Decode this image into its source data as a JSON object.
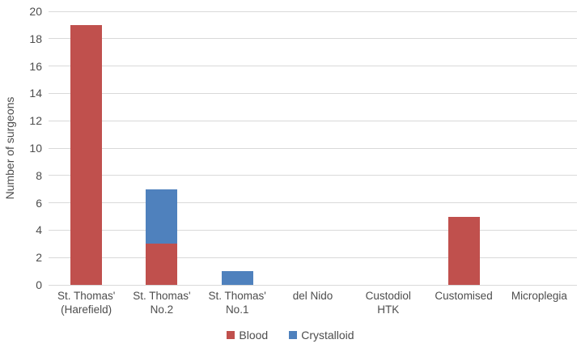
{
  "chart_data": {
    "type": "bar",
    "stacked": true,
    "title": "",
    "xlabel": "",
    "ylabel": "Number of surgeons",
    "ylim": [
      0,
      20
    ],
    "yticks": [
      0,
      2,
      4,
      6,
      8,
      10,
      12,
      14,
      16,
      18,
      20
    ],
    "grid": true,
    "legend_position": "bottom",
    "categories": [
      "St. Thomas' (Harefield)",
      "St. Thomas' No.2",
      "St. Thomas' No.1",
      "del Nido",
      "Custodiol HTK",
      "Customised",
      "Microplegia"
    ],
    "category_label_lines": [
      "St. Thomas'\n(Harefield)",
      "St. Thomas'\nNo.2",
      "St. Thomas'\nNo.1",
      "del Nido",
      "Custodiol\nHTK",
      "Customised",
      "Microplegia"
    ],
    "series": [
      {
        "name": "Blood",
        "color": "#c0504d",
        "values": [
          19,
          3,
          0,
          0,
          0,
          5,
          0
        ]
      },
      {
        "name": "Crystalloid",
        "color": "#4f81bd",
        "values": [
          0,
          4,
          1,
          0,
          0,
          0,
          0
        ]
      }
    ]
  },
  "colors": {
    "gridline": "#d9d9d9",
    "axis_text": "#4d4d4d",
    "background": "#ffffff"
  }
}
